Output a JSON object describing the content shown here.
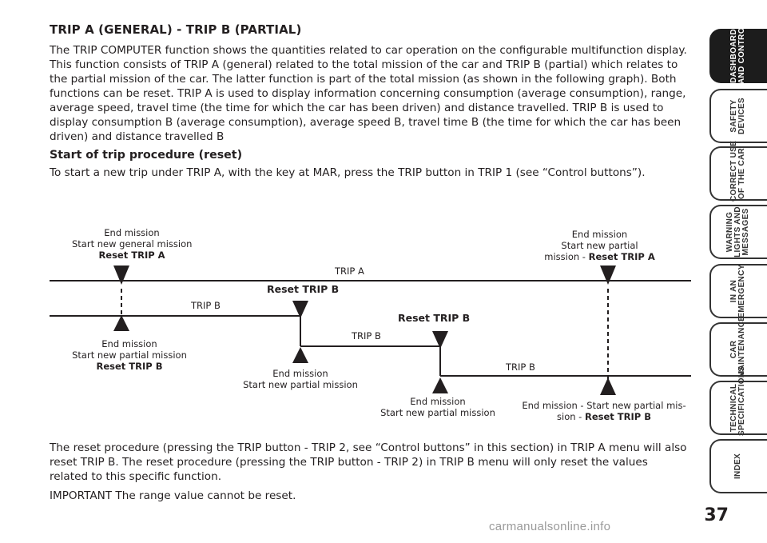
{
  "title": "TRIP A (GENERAL) - TRIP B (PARTIAL)",
  "intro": "The TRIP COMPUTER function shows the quantities related to car operation on the configurable multifunction display. This function consists of TRIP A (general) related to the total mission of the car and TRIP B (partial) which relates to the partial mission of the car. The latter function is part of the total mission (as shown in the following graph). Both functions can be reset. TRIP A is used to display information concerning consumption (average consumption), range, average speed, travel time (the time for which the car has been driven) and distance travelled. TRIP B is used to display consumption B (average consumption), average speed B, travel time B (the time for which the car has been driven) and distance travelled B",
  "subheading": "Start of trip procedure (reset)",
  "start_text": "To start a new trip under TRIP A, with the key at MAR, press the TRIP button in TRIP 1 (see “Control buttons”).",
  "diagram": {
    "top_left": {
      "l1": "End mission",
      "l2": "Start new general mission",
      "l3": "Reset TRIP A"
    },
    "top_right": {
      "l1": "End mission",
      "l2": "Start new partial",
      "l3a": "mission - ",
      "l3b": "Reset TRIP A"
    },
    "trip_a": "TRIP A",
    "reset_b_1": "Reset TRIP B",
    "trip_b_1": "TRIP B",
    "reset_b_2": "Reset   TRIP   B",
    "trip_b_2": "TRIP B",
    "trip_b_3": "TRIP B",
    "bottom_1": {
      "l1": "End mission",
      "l2": "Start new partial mission",
      "l3": "Reset TRIP B"
    },
    "bottom_2": {
      "l1": "End mission",
      "l2": "Start new partial mission"
    },
    "bottom_3": {
      "l1": "End mission",
      "l2": "Start new partial mission"
    },
    "bottom_4": {
      "l1": "End mission - Start new partial mis-",
      "l2a": "sion - ",
      "l2b": "Reset TRIP B"
    }
  },
  "reset_text": "The reset procedure (pressing the TRIP button - TRIP 2, see “Control buttons” in this section) in TRIP A menu will also reset TRIP B. The reset procedure (pressing the TRIP button - TRIP 2) in TRIP B menu will only reset the values related to this specific function.",
  "important_text": "IMPORTANT The range value cannot be reset.",
  "sidebar": {
    "tabs": [
      {
        "label": "DASHBOARD\nAND CONTROLS",
        "active": true
      },
      {
        "label": "SAFETY\nDEVICES",
        "active": false
      },
      {
        "label": "CORRECT USE\nOF THE CAR",
        "active": false
      },
      {
        "label": "WARNING\nLIGHTS AND\nMESSAGES",
        "active": false
      },
      {
        "label": "IN AN\nEMERGENCY",
        "active": false
      },
      {
        "label": "CAR\nMAINTENANCE",
        "active": false
      },
      {
        "label": "TECHNICAL\nSPECIFICATIONS",
        "active": false
      },
      {
        "label": "INDEX",
        "active": false
      }
    ]
  },
  "page_number": "37",
  "watermark": "carmanualsonline.info"
}
